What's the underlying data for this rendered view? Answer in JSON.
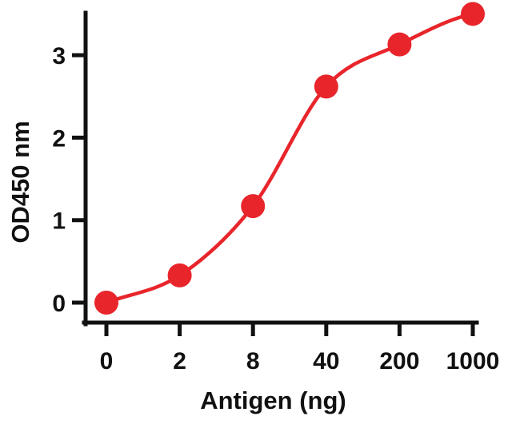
{
  "chart_data": {
    "type": "line",
    "title": "",
    "xlabel": "Antigen (ng)",
    "ylabel": "OD450 nm",
    "categories": [
      "0",
      "2",
      "8",
      "40",
      "200",
      "1000"
    ],
    "series": [
      {
        "values": [
          0.0,
          0.33,
          1.17,
          2.62,
          3.13,
          3.5
        ],
        "color": "#e8252b"
      }
    ],
    "curve_fit": "sigmoidal",
    "yticks": [
      0,
      1,
      2,
      3
    ],
    "ylim": [
      -0.25,
      3.5
    ],
    "grid": false,
    "legend": "none"
  },
  "colors": {
    "axis": "#111111",
    "series": "#e8252b"
  }
}
